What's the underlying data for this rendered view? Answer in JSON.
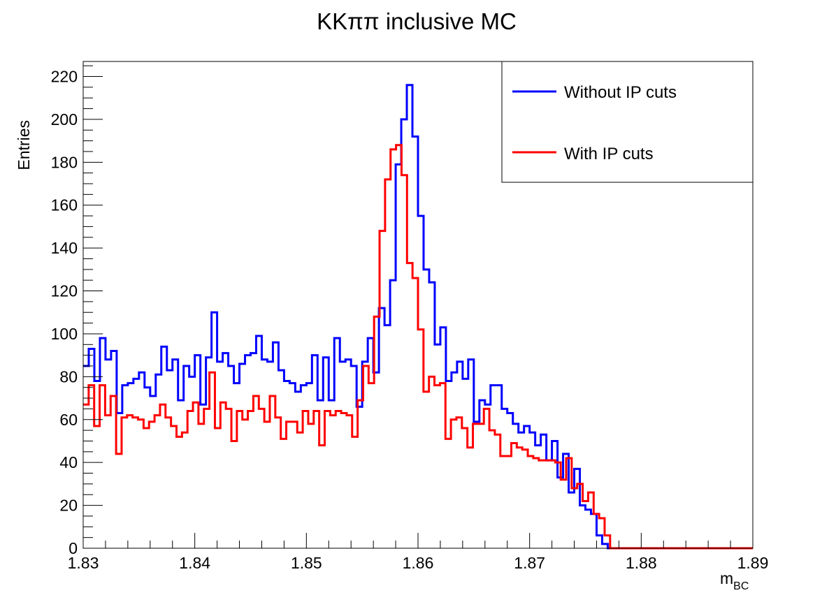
{
  "chart_data": {
    "type": "line",
    "title": "KKππ inclusive MC",
    "xlabel": "m",
    "xlabel_sub": "BC",
    "ylabel": "Entries",
    "xlim": [
      1.83,
      1.89
    ],
    "ylim": [
      0,
      227
    ],
    "x_ticks": [
      "1.83",
      "1.84",
      "1.85",
      "1.86",
      "1.87",
      "1.88",
      "1.89"
    ],
    "y_ticks": [
      "0",
      "20",
      "40",
      "60",
      "80",
      "100",
      "120",
      "140",
      "160",
      "180",
      "200",
      "220"
    ],
    "bins": 120,
    "bin_width": 0.0005,
    "legend_position": "top-right",
    "grid": false,
    "series": [
      {
        "name": "Without IP cuts",
        "color": "#0000ff",
        "values": [
          85,
          93,
          78,
          98,
          88,
          92,
          63,
          76,
          77,
          79,
          82,
          75,
          71,
          81,
          94,
          83,
          88,
          69,
          85,
          80,
          90,
          67,
          89,
          110,
          87,
          91,
          85,
          77,
          86,
          90,
          91,
          99,
          88,
          87,
          96,
          83,
          78,
          77,
          73,
          76,
          77,
          90,
          69,
          89,
          69,
          98,
          87,
          88,
          85,
          66,
          87,
          98,
          82,
          112,
          104,
          125,
          179,
          200,
          216,
          192,
          155,
          130,
          124,
          95,
          103,
          78,
          82,
          87,
          79,
          88,
          59,
          69,
          67,
          76,
          76,
          65,
          63,
          58,
          54,
          57,
          54,
          48,
          53,
          41,
          50,
          33,
          44,
          26,
          37,
          20,
          18,
          16,
          6,
          2,
          0,
          0,
          0,
          0,
          0,
          0,
          0,
          0,
          0,
          0,
          0,
          0,
          0,
          0,
          0,
          0,
          0,
          0,
          0,
          0,
          0,
          0,
          0,
          0,
          0,
          0
        ]
      },
      {
        "name": "With IP cuts",
        "color": "#ff0000",
        "values": [
          67,
          76,
          57,
          76,
          62,
          71,
          44,
          61,
          62,
          61,
          60,
          56,
          59,
          62,
          67,
          61,
          57,
          52,
          54,
          64,
          68,
          58,
          65,
          82,
          56,
          68,
          65,
          50,
          64,
          60,
          64,
          71,
          65,
          59,
          71,
          61,
          51,
          59,
          59,
          54,
          64,
          58,
          64,
          48,
          64,
          62,
          64,
          63,
          62,
          52,
          69,
          85,
          77,
          108,
          148,
          172,
          186,
          188,
          174,
          133,
          126,
          102,
          73,
          80,
          76,
          77,
          51,
          60,
          61,
          56,
          47,
          58,
          58,
          65,
          55,
          53,
          43,
          43,
          49,
          47,
          46,
          43,
          42,
          41,
          41,
          41,
          40,
          32,
          42,
          28,
          30,
          22,
          26,
          16,
          14,
          6,
          0,
          0,
          0,
          0,
          0,
          0,
          0,
          0,
          0,
          0,
          0,
          0,
          0,
          0,
          0,
          0,
          0,
          0,
          0,
          0,
          0,
          0,
          0,
          0,
          0,
          0
        ]
      }
    ]
  }
}
